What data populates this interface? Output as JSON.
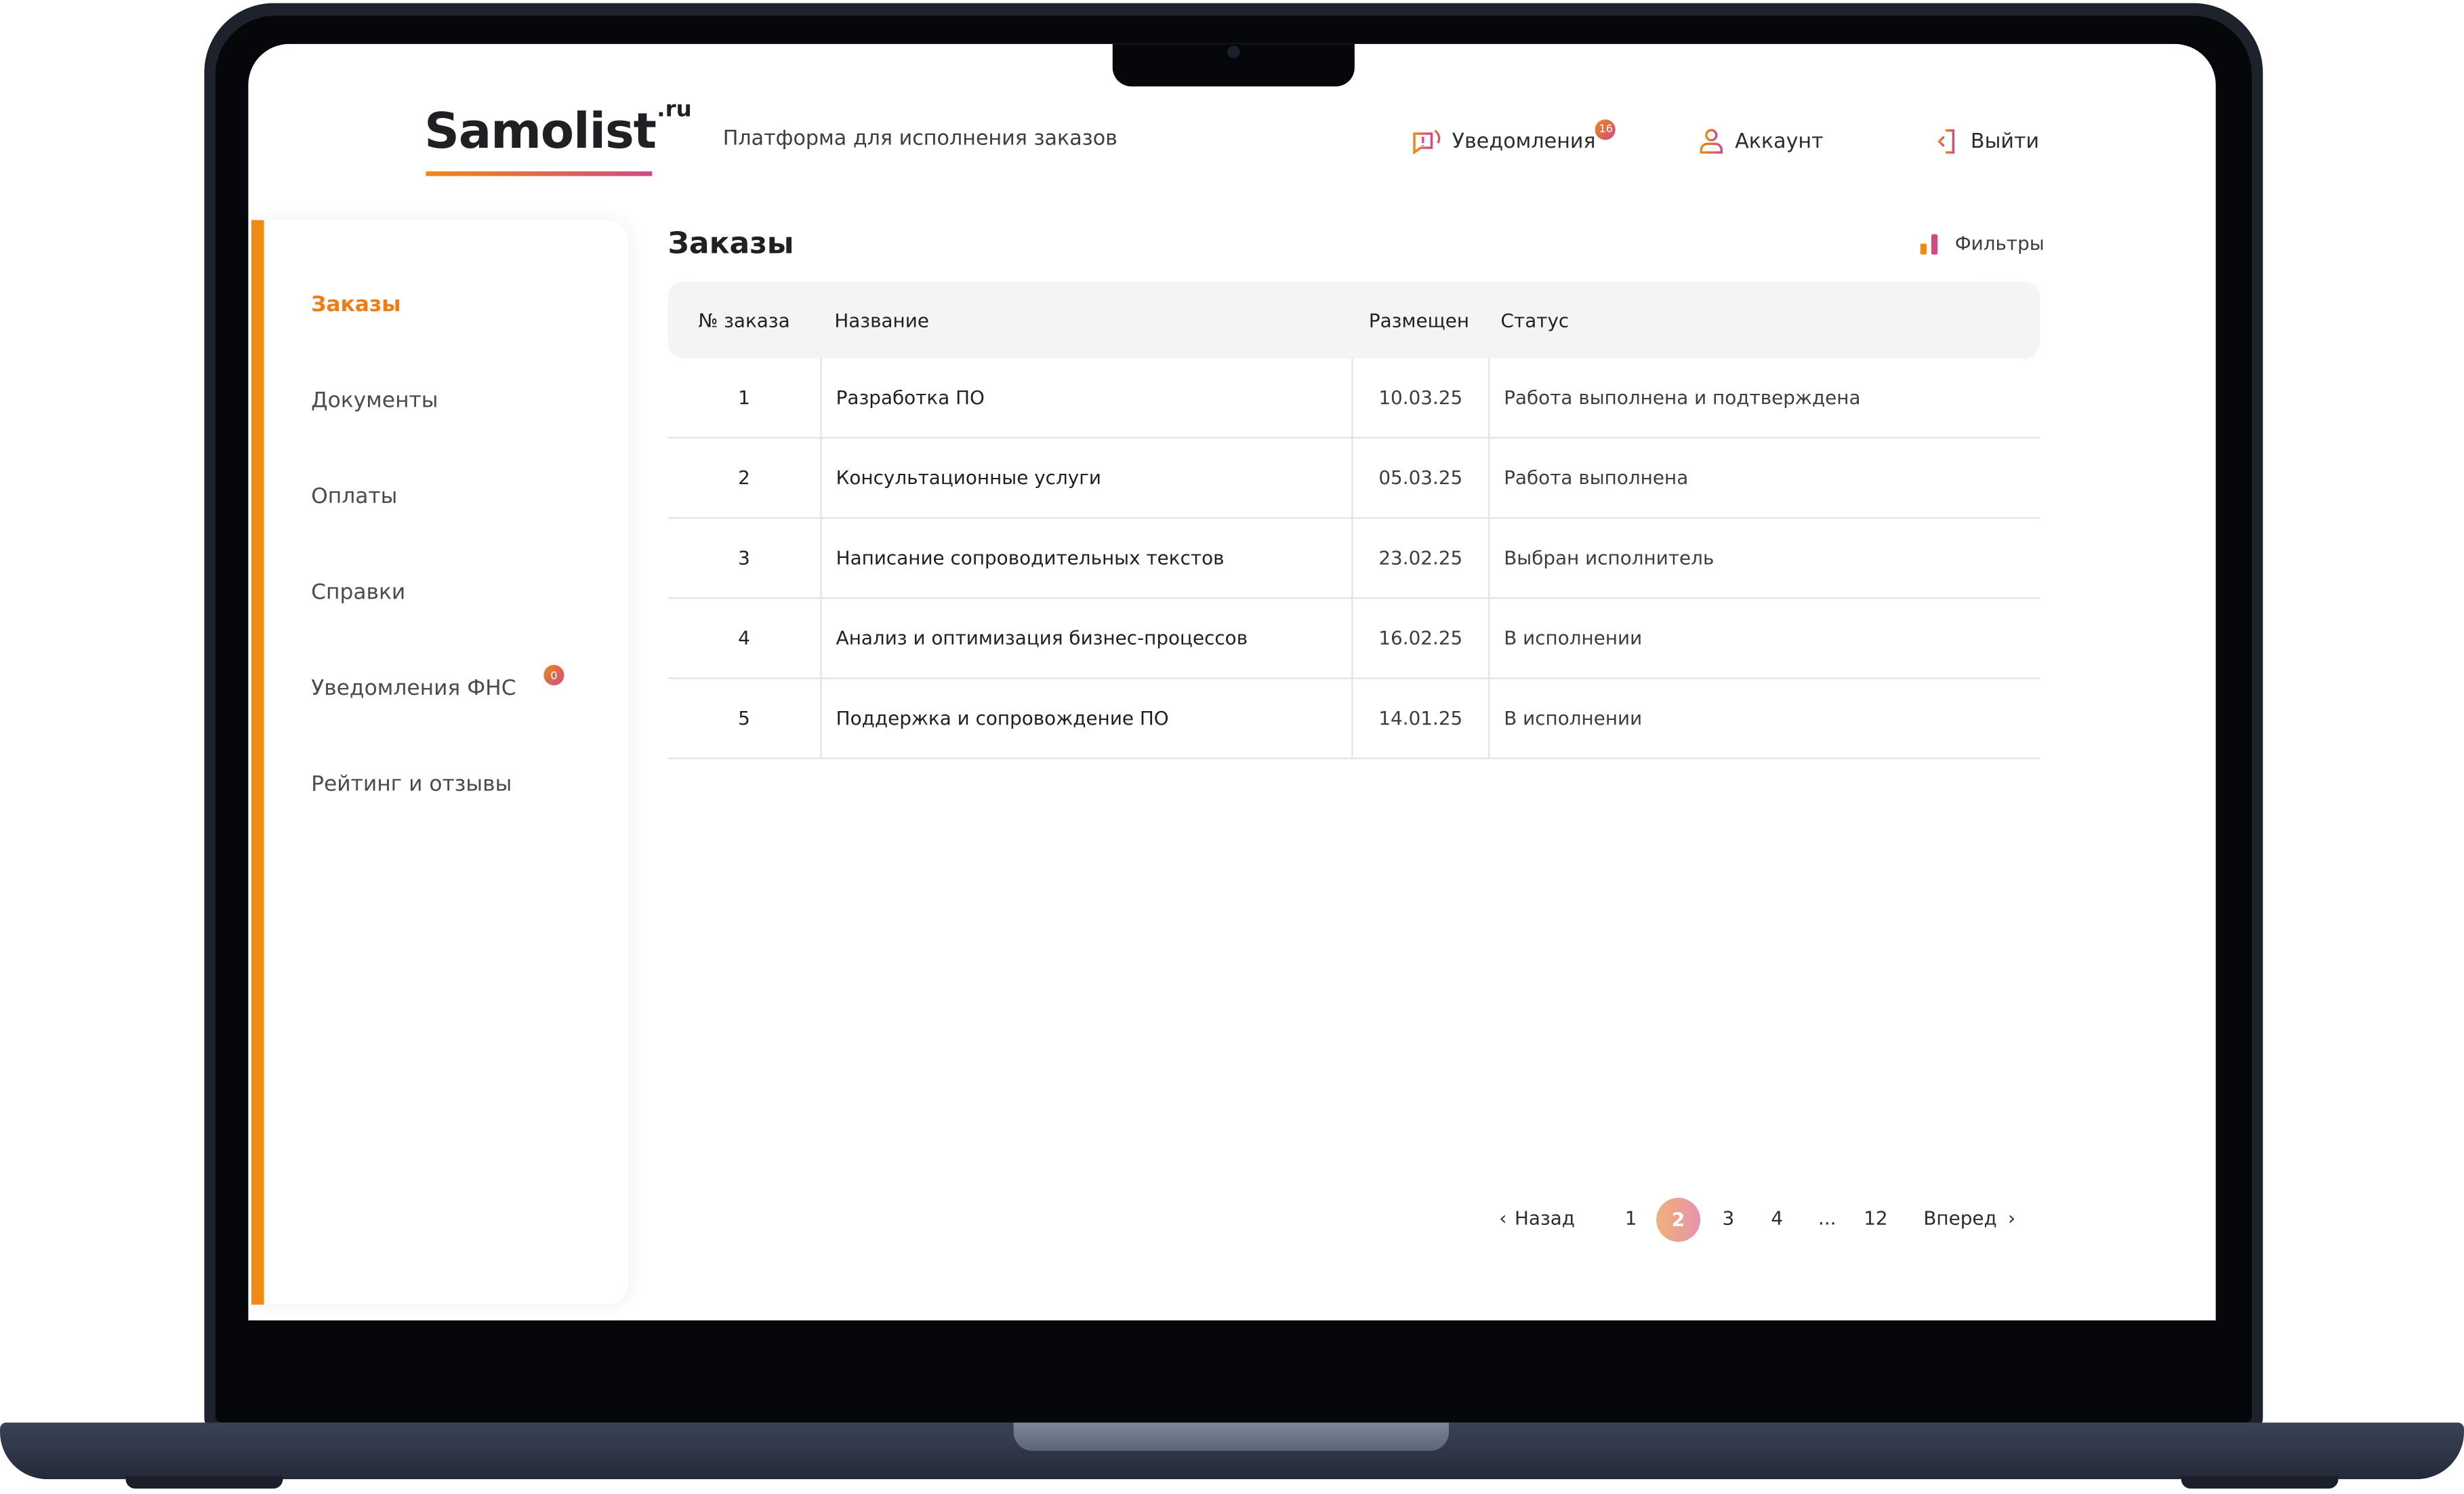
{
  "header": {
    "logo": "Samolist",
    "logo_suffix": ".ru",
    "tagline": "Платформа для исполнения заказов",
    "notifications_label": "Уведомления",
    "notifications_count": "16",
    "account_label": "Аккаунт",
    "logout_label": "Выйти"
  },
  "sidebar": {
    "items": [
      {
        "label": "Заказы",
        "active": true
      },
      {
        "label": "Документы"
      },
      {
        "label": "Оплаты"
      },
      {
        "label": "Справки"
      },
      {
        "label": "Уведомления ФНС",
        "badge": "0"
      },
      {
        "label": "Рейтинг и отзывы"
      }
    ]
  },
  "main": {
    "title": "Заказы",
    "filters_label": "Фильтры",
    "columns": [
      "№ заказа",
      "Название",
      "Размещен",
      "Статус"
    ],
    "rows": [
      [
        "1",
        "Разработка ПО",
        "10.03.25",
        "Работа выполнена и подтверждена"
      ],
      [
        "2",
        "Консультационные услуги",
        "05.03.25",
        "Работа выполнена"
      ],
      [
        "3",
        "Написание сопроводительных текстов",
        "23.02.25",
        "Выбран исполнитель"
      ],
      [
        "4",
        "Анализ и оптимизация бизнес-процессов",
        "16.02.25",
        "В исполнении"
      ],
      [
        "5",
        "Поддержка и сопровождение ПО",
        "14.01.25",
        "В исполнении"
      ]
    ]
  },
  "pagination": {
    "prev": "Назад",
    "next": "Вперед",
    "pages": [
      "1",
      "2",
      "3",
      "4",
      "...",
      "12"
    ],
    "current": "2"
  },
  "colors": {
    "accent": "#ef7d14",
    "accent2": "#d04a86"
  }
}
